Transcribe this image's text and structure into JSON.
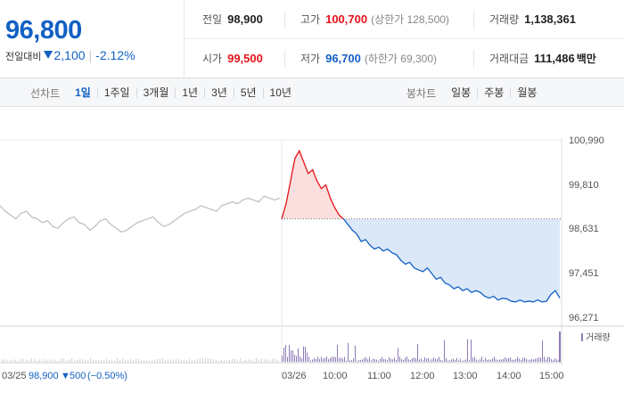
{
  "summary": {
    "current_price": "96,800",
    "change_label": "전일대비",
    "change_amount": "2,100",
    "change_percent": "-2.12%",
    "prev_close": {
      "label": "전일",
      "value": "98,900"
    },
    "high": {
      "label": "고가",
      "value": "100,700",
      "sub": "(상한가 128,500)"
    },
    "volume": {
      "label": "거래량",
      "value": "1,138,361"
    },
    "open": {
      "label": "시가",
      "value": "99,500"
    },
    "low": {
      "label": "저가",
      "value": "96,700",
      "sub": "(하한가 69,300)"
    },
    "amount": {
      "label": "거래대금",
      "value": "111,486",
      "unit": "백만"
    }
  },
  "line_tabs": {
    "title": "선차트",
    "items": [
      "1일",
      "1주일",
      "3개월",
      "1년",
      "3년",
      "5년",
      "10년"
    ],
    "active": "1일"
  },
  "candle_tabs": {
    "title": "봉차트",
    "items": [
      "일봉",
      "주봉",
      "월봉"
    ]
  },
  "colors": {
    "up": "#e5131a",
    "down": "#1261c4",
    "prev_line": "#bdbdbd",
    "fill_down": "#dbe8f8",
    "fill_up": "#fbdede",
    "volume": "#8f7ab7"
  },
  "chart_data": {
    "type": "line",
    "y_ticks": [
      "100,990",
      "99,810",
      "98,631",
      "97,451",
      "96,271"
    ],
    "ylim": [
      96271,
      100990
    ],
    "reference_price": 98900,
    "x_labels": [
      "03/25",
      "03/26",
      "10:00",
      "11:00",
      "12:00",
      "13:00",
      "14:00",
      "15:00"
    ],
    "prev_day_note": {
      "date": "03/25",
      "close": "98,900",
      "change": "500",
      "percent": "(−0.50%)"
    },
    "volume_legend": "거래량",
    "prev_day_series": [
      99250,
      99100,
      99000,
      98900,
      99050,
      99100,
      98950,
      98900,
      98800,
      98850,
      98700,
      98650,
      98800,
      98900,
      98950,
      98800,
      98750,
      98600,
      98700,
      98850,
      98900,
      98750,
      98650,
      98550,
      98600,
      98700,
      98800,
      98850,
      98900,
      98950,
      98800,
      98700,
      98750,
      98850,
      98950,
      99050,
      99100,
      99150,
      99250,
      99200,
      99150,
      99100,
      99250,
      99300,
      99350,
      99300,
      99400,
      99450,
      99400,
      99350,
      99500,
      99450,
      99400,
      99450
    ],
    "today_series": [
      98900,
      99300,
      99900,
      100500,
      100700,
      100400,
      100100,
      100200,
      99900,
      99700,
      99800,
      99450,
      99200,
      99000,
      98900,
      98750,
      98600,
      98500,
      98300,
      98350,
      98200,
      98100,
      98150,
      98050,
      98100,
      98000,
      97950,
      97800,
      97700,
      97750,
      97600,
      97550,
      97500,
      97600,
      97450,
      97300,
      97350,
      97200,
      97150,
      97050,
      97100,
      97000,
      97050,
      96950,
      97000,
      96950,
      96850,
      96800,
      96850,
      96750,
      96800,
      96780,
      96720,
      96700,
      96750,
      96700,
      96720,
      96700,
      96750,
      96700,
      96720,
      96900,
      97000,
      96800
    ]
  }
}
